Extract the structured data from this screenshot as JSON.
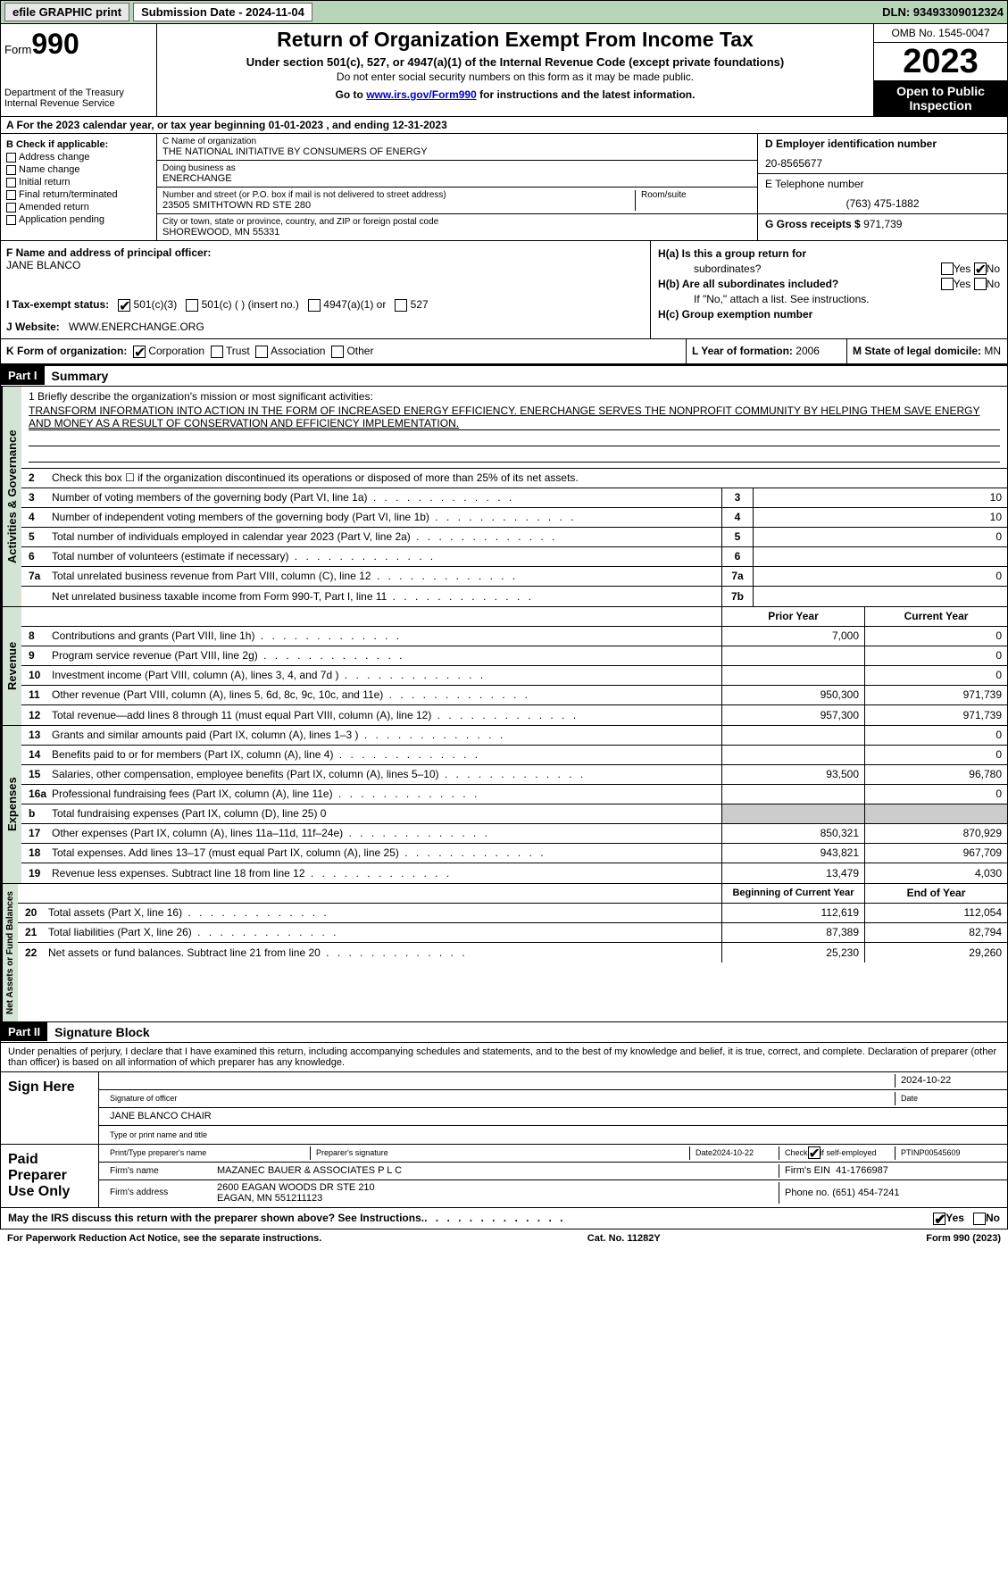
{
  "topbar": {
    "efile": "efile GRAPHIC print",
    "submission": "Submission Date - 2024-11-04",
    "dln": "DLN: 93493309012324"
  },
  "header": {
    "form_word": "Form",
    "form_num": "990",
    "dept": "Department of the Treasury",
    "irs": "Internal Revenue Service",
    "title": "Return of Organization Exempt From Income Tax",
    "sub1": "Under section 501(c), 527, or 4947(a)(1) of the Internal Revenue Code (except private foundations)",
    "sub2": "Do not enter social security numbers on this form as it may be made public.",
    "sub3_a": "Go to ",
    "sub3_link": "www.irs.gov/Form990",
    "sub3_b": " for instructions and the latest information.",
    "omb": "OMB No. 1545-0047",
    "year": "2023",
    "open": "Open to Public Inspection"
  },
  "row_a": "A For the 2023 calendar year, or tax year beginning 01-01-2023   , and ending 12-31-2023",
  "col_b": {
    "hdr": "B Check if applicable:",
    "items": [
      "Address change",
      "Name change",
      "Initial return",
      "Final return/terminated",
      "Amended return",
      "Application pending"
    ]
  },
  "col_c": {
    "name_lbl": "C Name of organization",
    "name": "THE NATIONAL INITIATIVE BY CONSUMERS OF ENERGY",
    "dba_lbl": "Doing business as",
    "dba": "ENERCHANGE",
    "addr_lbl": "Number and street (or P.O. box if mail is not delivered to street address)",
    "addr": "23505 SMITHTOWN RD STE 280",
    "room_lbl": "Room/suite",
    "city_lbl": "City or town, state or province, country, and ZIP or foreign postal code",
    "city": "SHOREWOOD, MN  55331"
  },
  "col_d": {
    "ein_lbl": "D Employer identification number",
    "ein": "20-8565677",
    "tel_lbl": "E Telephone number",
    "tel": "(763) 475-1882",
    "gross_lbl": "G Gross receipts $",
    "gross": "971,739"
  },
  "col_f": {
    "lbl": "F  Name and address of principal officer:",
    "name": "JANE BLANCO"
  },
  "col_h": {
    "ha": "H(a)  Is this a group return for",
    "ha2": "subordinates?",
    "hb": "H(b)  Are all subordinates included?",
    "hb2": "If \"No,\" attach a list. See instructions.",
    "hc": "H(c)  Group exemption number",
    "yes": "Yes",
    "no": "No"
  },
  "row_i": {
    "lbl": "I   Tax-exempt status:",
    "o1": "501(c)(3)",
    "o2": "501(c) (  ) (insert no.)",
    "o3": "4947(a)(1) or",
    "o4": "527"
  },
  "row_j": {
    "lbl": "J   Website:",
    "val": "WWW.ENERCHANGE.ORG"
  },
  "row_k": {
    "lbl": "K Form of organization:",
    "o1": "Corporation",
    "o2": "Trust",
    "o3": "Association",
    "o4": "Other",
    "l_lbl": "L Year of formation:",
    "l_val": "2006",
    "m_lbl": "M State of legal domicile:",
    "m_val": "MN"
  },
  "part1": {
    "hdr": "Part I",
    "title": "Summary"
  },
  "tabs": {
    "ag": "Activities & Governance",
    "rev": "Revenue",
    "exp": "Expenses",
    "nab": "Net Assets or Fund Balances"
  },
  "mission": {
    "lbl": "1  Briefly describe the organization's mission or most significant activities:",
    "txt": "TRANSFORM INFORMATION INTO ACTION IN THE FORM OF INCREASED ENERGY EFFICIENCY. ENERCHANGE SERVES THE NONPROFIT COMMUNITY BY HELPING THEM SAVE ENERGY AND MONEY AS A RESULT OF CONSERVATION AND EFFICIENCY IMPLEMENTATION."
  },
  "lines_ag": [
    {
      "n": "2",
      "t": "Check this box  ☐  if the organization discontinued its operations or disposed of more than 25% of its net assets."
    },
    {
      "n": "3",
      "t": "Number of voting members of the governing body (Part VI, line 1a)",
      "box": "3",
      "v": "10"
    },
    {
      "n": "4",
      "t": "Number of independent voting members of the governing body (Part VI, line 1b)",
      "box": "4",
      "v": "10"
    },
    {
      "n": "5",
      "t": "Total number of individuals employed in calendar year 2023 (Part V, line 2a)",
      "box": "5",
      "v": "0"
    },
    {
      "n": "6",
      "t": "Total number of volunteers (estimate if necessary)",
      "box": "6",
      "v": ""
    },
    {
      "n": "7a",
      "t": "Total unrelated business revenue from Part VIII, column (C), line 12",
      "box": "7a",
      "v": "0"
    },
    {
      "n": "",
      "t": "Net unrelated business taxable income from Form 990-T, Part I, line 11",
      "box": "7b",
      "v": ""
    }
  ],
  "yr_hdr": {
    "p": "Prior Year",
    "c": "Current Year"
  },
  "lines_rev": [
    {
      "n": "8",
      "t": "Contributions and grants (Part VIII, line 1h)",
      "p": "7,000",
      "c": "0"
    },
    {
      "n": "9",
      "t": "Program service revenue (Part VIII, line 2g)",
      "p": "",
      "c": "0"
    },
    {
      "n": "10",
      "t": "Investment income (Part VIII, column (A), lines 3, 4, and 7d )",
      "p": "",
      "c": "0"
    },
    {
      "n": "11",
      "t": "Other revenue (Part VIII, column (A), lines 5, 6d, 8c, 9c, 10c, and 11e)",
      "p": "950,300",
      "c": "971,739"
    },
    {
      "n": "12",
      "t": "Total revenue—add lines 8 through 11 (must equal Part VIII, column (A), line 12)",
      "p": "957,300",
      "c": "971,739"
    }
  ],
  "lines_exp": [
    {
      "n": "13",
      "t": "Grants and similar amounts paid (Part IX, column (A), lines 1–3 )",
      "p": "",
      "c": "0"
    },
    {
      "n": "14",
      "t": "Benefits paid to or for members (Part IX, column (A), line 4)",
      "p": "",
      "c": "0"
    },
    {
      "n": "15",
      "t": "Salaries, other compensation, employee benefits (Part IX, column (A), lines 5–10)",
      "p": "93,500",
      "c": "96,780"
    },
    {
      "n": "16a",
      "t": "Professional fundraising fees (Part IX, column (A), line 11e)",
      "p": "",
      "c": "0"
    },
    {
      "n": "b",
      "t": "Total fundraising expenses (Part IX, column (D), line 25) 0",
      "grey": true
    },
    {
      "n": "17",
      "t": "Other expenses (Part IX, column (A), lines 11a–11d, 11f–24e)",
      "p": "850,321",
      "c": "870,929"
    },
    {
      "n": "18",
      "t": "Total expenses. Add lines 13–17 (must equal Part IX, column (A), line 25)",
      "p": "943,821",
      "c": "967,709"
    },
    {
      "n": "19",
      "t": "Revenue less expenses. Subtract line 18 from line 12",
      "p": "13,479",
      "c": "4,030"
    }
  ],
  "yr_hdr2": {
    "p": "Beginning of Current Year",
    "c": "End of Year"
  },
  "lines_nab": [
    {
      "n": "20",
      "t": "Total assets (Part X, line 16)",
      "p": "112,619",
      "c": "112,054"
    },
    {
      "n": "21",
      "t": "Total liabilities (Part X, line 26)",
      "p": "87,389",
      "c": "82,794"
    },
    {
      "n": "22",
      "t": "Net assets or fund balances. Subtract line 21 from line 20",
      "p": "25,230",
      "c": "29,260"
    }
  ],
  "part2": {
    "hdr": "Part II",
    "title": "Signature Block"
  },
  "sig": {
    "decl": "Under penalties of perjury, I declare that I have examined this return, including accompanying schedules and statements, and to the best of my knowledge and belief, it is true, correct, and complete. Declaration of preparer (other than officer) is based on all information of which preparer has any knowledge.",
    "sign_here": "Sign Here",
    "sig_lbl": "Signature of officer",
    "date1": "2024-10-22",
    "date_lbl": "Date",
    "name": "JANE BLANCO CHAIR",
    "name_lbl": "Type or print name and title",
    "paid": "Paid Preparer Use Only",
    "prep_name_lbl": "Print/Type preparer's name",
    "prep_sig_lbl": "Preparer's signature",
    "date2": "2024-10-22",
    "chk_lbl": "Check         if self-employed",
    "ptin_lbl": "PTIN",
    "ptin": "P00545609",
    "firm_lbl": "Firm's name",
    "firm": "MAZANEC BAUER & ASSOCIATES P L C",
    "fein_lbl": "Firm's EIN",
    "fein": "41-1766987",
    "faddr_lbl": "Firm's address",
    "faddr1": "2600 EAGAN WOODS DR STE 210",
    "faddr2": "EAGAN, MN  551211123",
    "phone_lbl": "Phone no.",
    "phone": "(651) 454-7241"
  },
  "footer": {
    "q": "May the IRS discuss this return with the preparer shown above? See Instructions.",
    "yes": "Yes",
    "no": "No",
    "pra": "For Paperwork Reduction Act Notice, see the separate instructions.",
    "cat": "Cat. No. 11282Y",
    "form": "Form 990 (2023)"
  }
}
